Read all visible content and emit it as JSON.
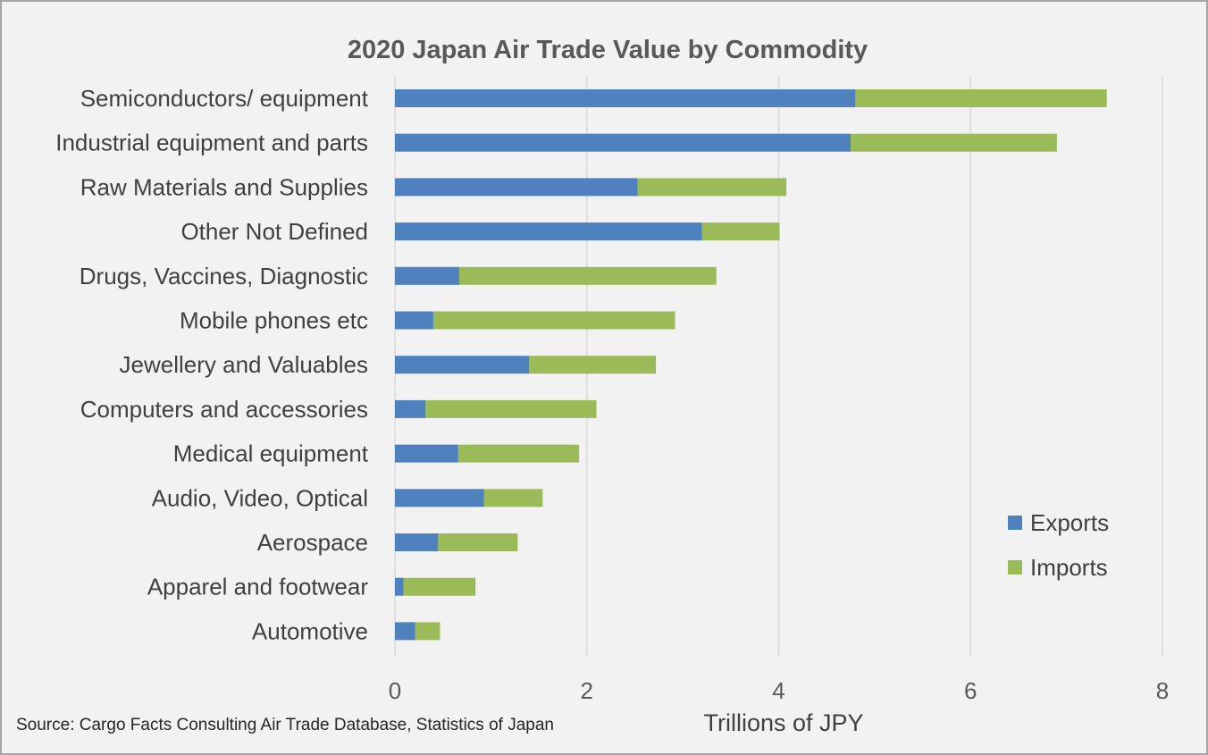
{
  "chart_data": {
    "type": "bar",
    "orientation": "horizontal",
    "stacked": true,
    "title": "2020 Japan Air Trade Value by Commodity",
    "xlabel": "Trillions of JPY",
    "ylabel": "",
    "xlim": [
      0,
      8
    ],
    "xticks": [
      "0",
      "2",
      "4",
      "6",
      "8"
    ],
    "grid": true,
    "legend_position": "right",
    "categories": [
      "Semiconductors/ equipment",
      "Industrial equipment and parts",
      "Raw Materials and Supplies",
      "Other Not Defined",
      "Drugs, Vaccines, Diagnostic",
      "Mobile phones etc",
      "Jewellery and Valuables",
      "Computers and accessories",
      "Medical equipment",
      "Audio, Video, Optical",
      "Aerospace",
      "Apparel and footwear",
      "Automotive"
    ],
    "series": [
      {
        "name": "Exports",
        "color": "#4e81bd",
        "values": [
          4.8,
          4.75,
          2.53,
          3.2,
          0.67,
          0.4,
          1.4,
          0.32,
          0.66,
          0.93,
          0.45,
          0.09,
          0.21
        ]
      },
      {
        "name": "Imports",
        "color": "#9bbb59",
        "values": [
          2.62,
          2.15,
          1.55,
          0.81,
          2.68,
          2.52,
          1.32,
          1.78,
          1.26,
          0.61,
          0.83,
          0.75,
          0.26
        ]
      }
    ],
    "source": "Source: Cargo Facts Consulting Air Trade Database, Statistics of Japan"
  }
}
